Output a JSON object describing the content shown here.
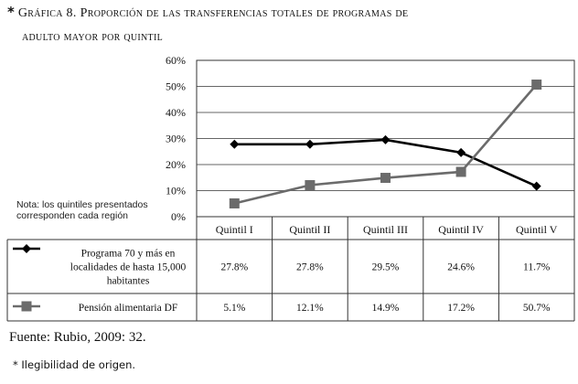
{
  "figure": {
    "asterisk": "*",
    "label": "Gráfica 8.",
    "title_line1": "Proporción de las transferencias totales de programas de",
    "title_line2": "adulto mayor por quintil",
    "note": "Nota: los quintiles presentados corresponden cada región",
    "source": "Fuente: Rubio, 2009: 32.",
    "footnote": "* Ilegibilidad de origen."
  },
  "chart_data": {
    "type": "line",
    "categories": [
      "Quintil I",
      "Quintil II",
      "Quintil III",
      "Quintil IV",
      "Quintil V"
    ],
    "y_ticks": [
      "0%",
      "10%",
      "20%",
      "30%",
      "40%",
      "50%",
      "60%"
    ],
    "ylim": [
      0,
      60
    ],
    "y_unit": "%",
    "grid": true,
    "series": [
      {
        "name": "Programa 70 y más en localidades de hasta 15,000 habitantes",
        "name_lines": [
          "Programa 70 y más en",
          "localidades de hasta 15,000",
          "habitantes"
        ],
        "marker": "diamond",
        "color": "#000000",
        "values": [
          27.8,
          27.8,
          29.5,
          24.6,
          11.7
        ],
        "labels": [
          "27.8%",
          "27.8%",
          "29.5%",
          "24.6%",
          "11.7%"
        ]
      },
      {
        "name": "Pensión alimentaria DF",
        "name_lines": [
          "Pensión alimentaria DF"
        ],
        "marker": "square",
        "color": "#6b6b6b",
        "values": [
          5.1,
          12.1,
          14.9,
          17.2,
          50.7
        ],
        "labels": [
          "5.1%",
          "12.1%",
          "14.9%",
          "17.2%",
          "50.7%"
        ]
      }
    ]
  }
}
